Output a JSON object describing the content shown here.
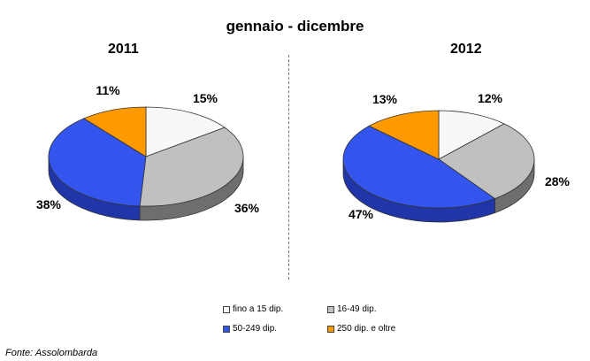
{
  "title": "gennaio - dicembre",
  "source": "Fonte: Assolombarda",
  "legend": [
    {
      "label": "fino a 15 dip.",
      "color": "#f8f8f8"
    },
    {
      "label": "16-49 dip.",
      "color": "#c0c0c0"
    },
    {
      "label": "50-249 dip.",
      "color": "#3355ee"
    },
    {
      "label": "250 dip. e oltre",
      "color": "#ff9900"
    }
  ],
  "chart_data": [
    {
      "type": "pie",
      "title": "2011",
      "categories": [
        "fino a 15 dip.",
        "16-49 dip.",
        "50-249 dip.",
        "250 dip. e oltre"
      ],
      "values": [
        15,
        36,
        38,
        11
      ],
      "labels": [
        "15%",
        "36%",
        "38%",
        "11%"
      ]
    },
    {
      "type": "pie",
      "title": "2012",
      "categories": [
        "fino a 15 dip.",
        "16-49 dip.",
        "50-249 dip.",
        "250 dip. e oltre"
      ],
      "values": [
        12,
        28,
        47,
        13
      ],
      "labels": [
        "12%",
        "28%",
        "47%",
        "13%"
      ]
    }
  ]
}
